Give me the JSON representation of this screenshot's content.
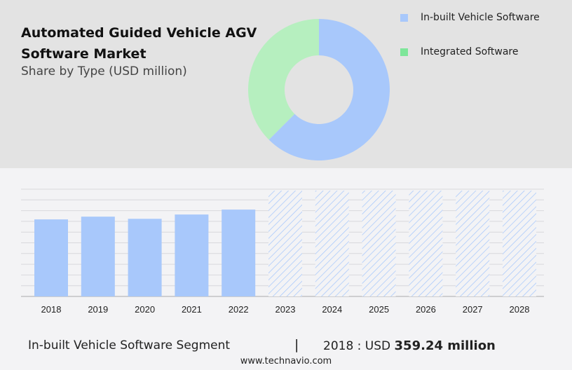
{
  "title": "Automated Guided Vehicle AGV Software Market",
  "subtitle": "Share by Type (USD million)",
  "legend": [
    {
      "label": "In-built Vehicle Software",
      "color": "#a8c8fb"
    },
    {
      "label": "Integrated Software",
      "color": "#7ee69a"
    }
  ],
  "chart_data": [
    {
      "type": "pie",
      "donut": true,
      "categories": [
        "In-built Vehicle Software",
        "Integrated Software"
      ],
      "values": [
        62.5,
        37.5
      ],
      "colors": [
        "#a8c8fb",
        "#b6efbf"
      ]
    },
    {
      "type": "bar",
      "categories": [
        "2018",
        "2019",
        "2020",
        "2021",
        "2022",
        "2023",
        "2024",
        "2025",
        "2026",
        "2027",
        "2028"
      ],
      "values": [
        359.24,
        372,
        362,
        382,
        405,
        null,
        null,
        null,
        null,
        null,
        null
      ],
      "forecast": [
        "2023",
        "2024",
        "2025",
        "2026",
        "2027",
        "2028"
      ],
      "ylim": [
        0,
        500
      ],
      "grid": true,
      "color": "#a8c8fb"
    }
  ],
  "footer": {
    "segment": "In-built Vehicle Software Segment",
    "separator": "|",
    "year_label": "2018 : USD",
    "value": "359.24 million"
  },
  "website": "www.technavio.com"
}
